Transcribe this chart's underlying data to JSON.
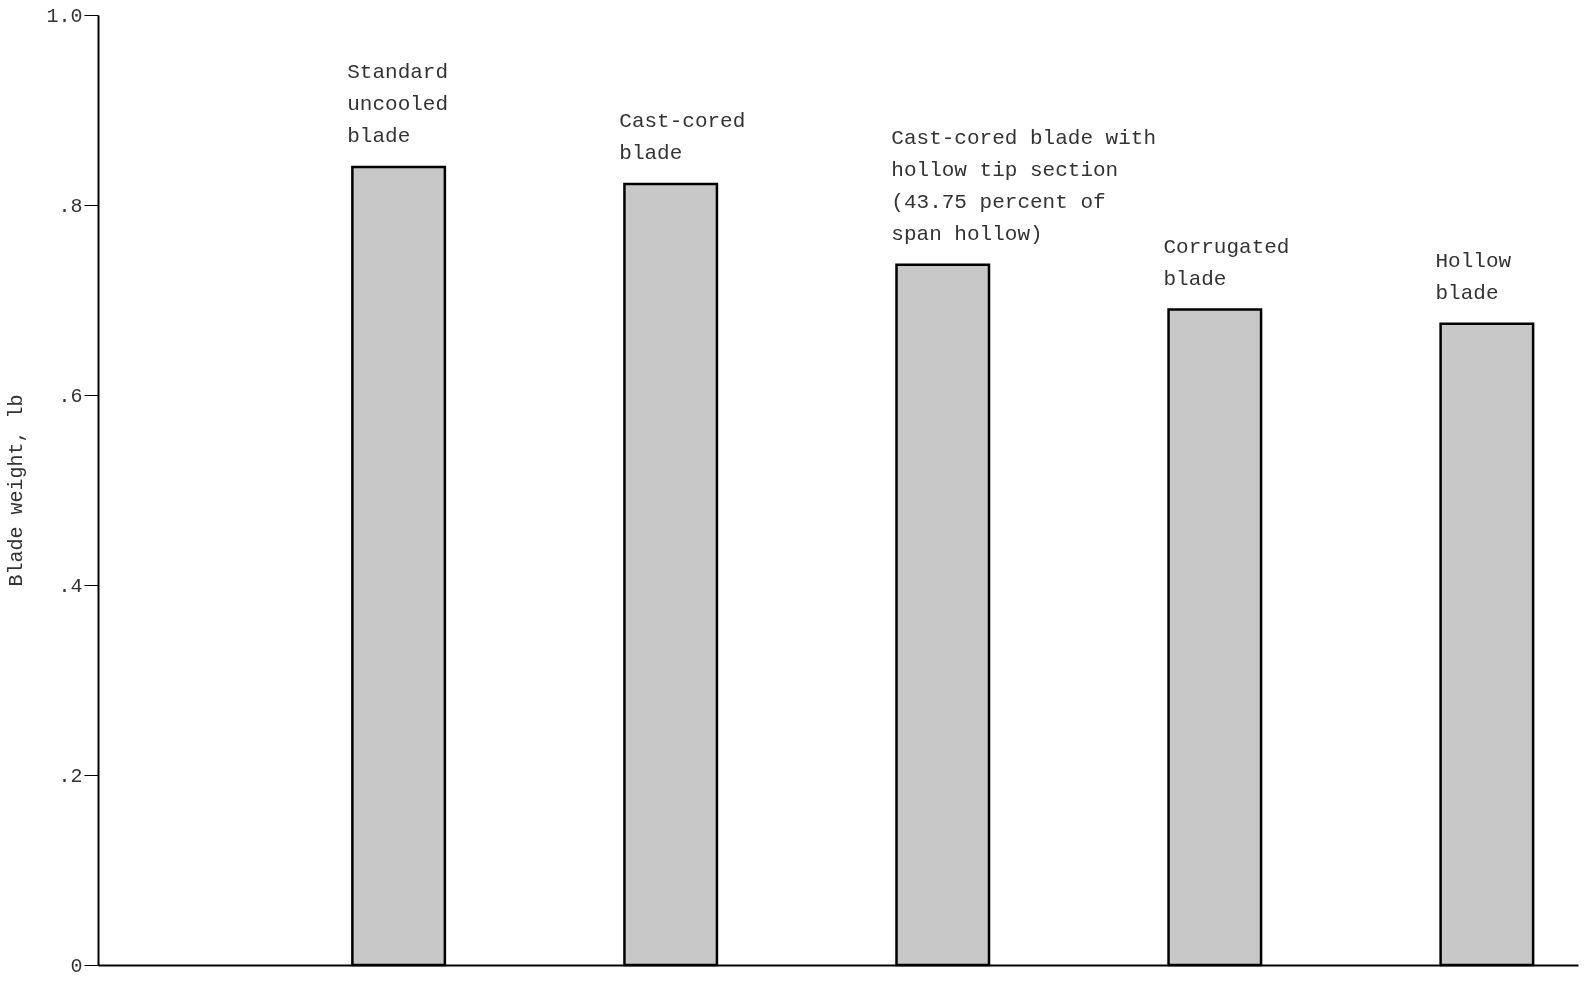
{
  "chart_data": {
    "type": "bar",
    "ylabel": "Blade weight, lb",
    "categories": [
      "Standard uncooled blade",
      "Cast-cored blade",
      "Cast-cored blade with hollow tip section (43.75 percent of span hollow)",
      "Corrugated blade",
      "Hollow blade"
    ],
    "values": [
      0.84,
      0.822,
      0.737,
      0.69,
      0.675
    ],
    "color": "#c8c8c8",
    "ylim": [
      0,
      1.0
    ],
    "yticks": [
      0,
      {
        "value": 0.2,
        "label": ".2"
      },
      {
        "value": 0.4,
        "label": ".4"
      },
      {
        "value": 0.6,
        "label": ".6"
      },
      {
        "value": 0.8,
        "label": ".8"
      },
      {
        "value": 1.0,
        "label": "1.0"
      }
    ],
    "grid": false,
    "tick_labels": "y"
  }
}
